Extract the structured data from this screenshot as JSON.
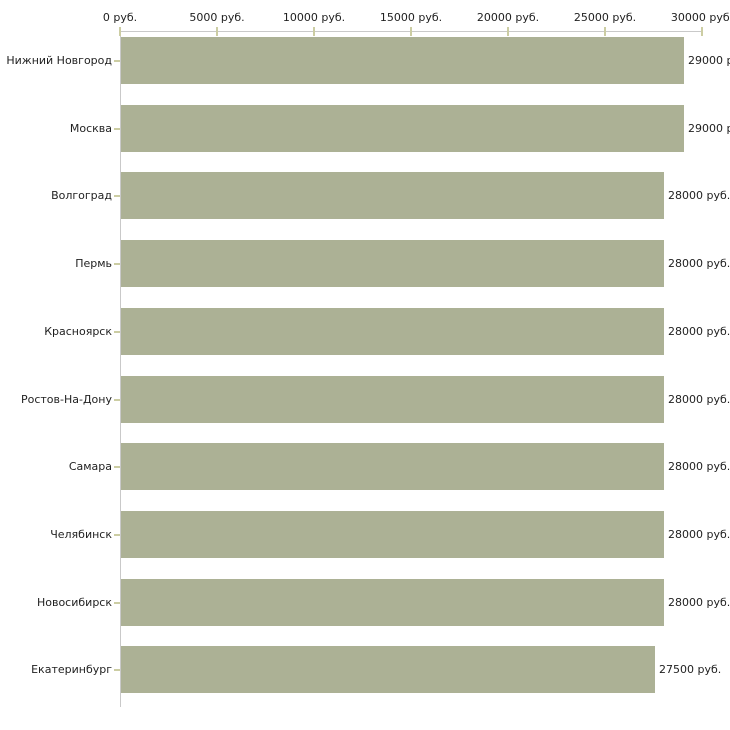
{
  "chart_data": {
    "type": "bar",
    "orientation": "horizontal",
    "title": "",
    "xlabel": "",
    "ylabel": "",
    "categories": [
      "Нижний Новгород",
      "Москва",
      "Волгоград",
      "Пермь",
      "Красноярск",
      "Ростов-На-Дону",
      "Самара",
      "Челябинск",
      "Новосибирск",
      "Екатеринбург"
    ],
    "values": [
      29000,
      29000,
      28000,
      28000,
      28000,
      28000,
      28000,
      28000,
      28000,
      27500
    ],
    "value_labels": [
      "29000 р",
      "29000 р",
      "28000 руб.",
      "28000 руб.",
      "28000 руб.",
      "28000 руб.",
      "28000 руб.",
      "28000 руб.",
      "28000 руб.",
      "27500 руб."
    ],
    "x_axis": {
      "min": 0,
      "max": 30000,
      "ticks": [
        0,
        5000,
        10000,
        15000,
        20000,
        25000,
        30000
      ],
      "tick_labels": [
        "0 руб.",
        "5000 руб.",
        "10000 руб.",
        "15000 руб.",
        "20000 руб.",
        "25000 руб.",
        "30000 руб."
      ],
      "position": "top"
    },
    "grid": "off",
    "legend": "none",
    "colors": {
      "bar": "#ACB195",
      "axis_line": "#C9C9C9",
      "tick_mark": "#CCCDA3",
      "text": "#1F1F1F",
      "background": "#FFFFFF"
    }
  }
}
